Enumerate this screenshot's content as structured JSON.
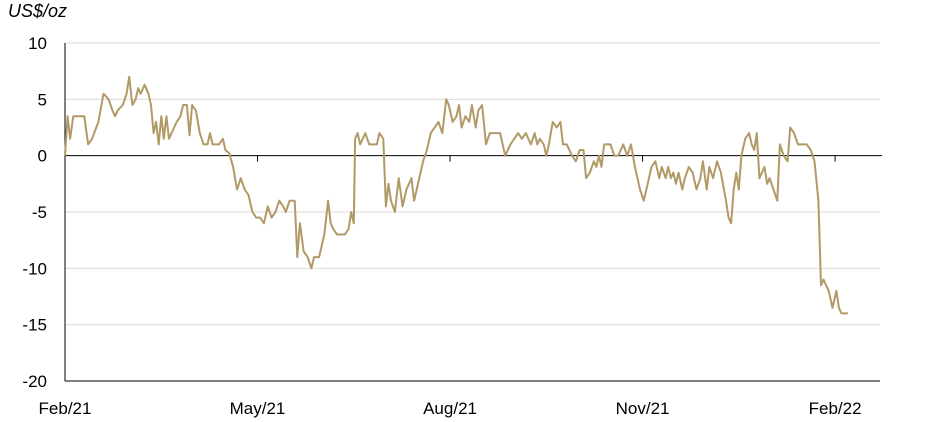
{
  "chart_data": {
    "type": "line",
    "title": "",
    "ylabel": "US$/oz",
    "xlabel": "",
    "ylim": [
      -20,
      10
    ],
    "yticks": [
      10,
      5,
      0,
      -5,
      -10,
      -15,
      -20
    ],
    "xticks": [
      {
        "label": "Feb/21",
        "x": 0
      },
      {
        "label": "May/21",
        "x": 3
      },
      {
        "label": "Aug/21",
        "x": 6
      },
      {
        "label": "Nov/21",
        "x": 9
      },
      {
        "label": "Feb/22",
        "x": 12
      }
    ],
    "xlim": [
      0,
      12.7
    ],
    "grid": true,
    "color": "#B19A66",
    "x_unit": "months since Feb/21",
    "series": [
      {
        "name": "",
        "points": [
          [
            0.0,
            0
          ],
          [
            0.04,
            3.5
          ],
          [
            0.08,
            1.5
          ],
          [
            0.13,
            3.5
          ],
          [
            0.3,
            3.5
          ],
          [
            0.36,
            1.0
          ],
          [
            0.42,
            1.5
          ],
          [
            0.52,
            3.0
          ],
          [
            0.6,
            5.5
          ],
          [
            0.68,
            5.0
          ],
          [
            0.74,
            4.0
          ],
          [
            0.78,
            3.5
          ],
          [
            0.82,
            4.0
          ],
          [
            0.9,
            4.5
          ],
          [
            0.96,
            5.5
          ],
          [
            1.0,
            7.0
          ],
          [
            1.05,
            4.5
          ],
          [
            1.1,
            5.0
          ],
          [
            1.14,
            6.0
          ],
          [
            1.18,
            5.5
          ],
          [
            1.24,
            6.3
          ],
          [
            1.3,
            5.5
          ],
          [
            1.34,
            4.5
          ],
          [
            1.38,
            2.0
          ],
          [
            1.42,
            3.0
          ],
          [
            1.46,
            1.0
          ],
          [
            1.5,
            3.5
          ],
          [
            1.54,
            1.5
          ],
          [
            1.58,
            3.5
          ],
          [
            1.62,
            1.5
          ],
          [
            1.7,
            2.5
          ],
          [
            1.74,
            3.0
          ],
          [
            1.8,
            3.5
          ],
          [
            1.84,
            4.5
          ],
          [
            1.9,
            4.5
          ],
          [
            1.94,
            1.8
          ],
          [
            1.98,
            4.5
          ],
          [
            2.04,
            4.0
          ],
          [
            2.1,
            2.0
          ],
          [
            2.16,
            1.0
          ],
          [
            2.22,
            1.0
          ],
          [
            2.26,
            2.0
          ],
          [
            2.3,
            1.0
          ],
          [
            2.4,
            1.0
          ],
          [
            2.46,
            1.5
          ],
          [
            2.5,
            0.5
          ],
          [
            2.56,
            0.2
          ],
          [
            2.62,
            -1.0
          ],
          [
            2.68,
            -3.0
          ],
          [
            2.74,
            -2.0
          ],
          [
            2.8,
            -3.0
          ],
          [
            2.86,
            -3.5
          ],
          [
            2.92,
            -5.0
          ],
          [
            2.98,
            -5.5
          ],
          [
            3.04,
            -5.5
          ],
          [
            3.1,
            -6.0
          ],
          [
            3.16,
            -4.5
          ],
          [
            3.22,
            -5.5
          ],
          [
            3.28,
            -5.0
          ],
          [
            3.34,
            -4.0
          ],
          [
            3.4,
            -4.5
          ],
          [
            3.44,
            -5.0
          ],
          [
            3.5,
            -4.0
          ],
          [
            3.58,
            -4.0
          ],
          [
            3.62,
            -9.0
          ],
          [
            3.66,
            -6.0
          ],
          [
            3.72,
            -8.5
          ],
          [
            3.78,
            -9.0
          ],
          [
            3.84,
            -10.0
          ],
          [
            3.88,
            -9.0
          ],
          [
            3.96,
            -9.0
          ],
          [
            4.04,
            -7.0
          ],
          [
            4.1,
            -4.0
          ],
          [
            4.14,
            -6.0
          ],
          [
            4.18,
            -6.5
          ],
          [
            4.24,
            -7.0
          ],
          [
            4.36,
            -7.0
          ],
          [
            4.42,
            -6.5
          ],
          [
            4.46,
            -5.0
          ],
          [
            4.5,
            -6.0
          ],
          [
            4.52,
            1.5
          ],
          [
            4.56,
            2.0
          ],
          [
            4.6,
            1.0
          ],
          [
            4.68,
            2.0
          ],
          [
            4.74,
            1.0
          ],
          [
            4.8,
            1.0
          ],
          [
            4.86,
            1.0
          ],
          [
            4.9,
            2.0
          ],
          [
            4.96,
            1.5
          ],
          [
            5.0,
            -4.5
          ],
          [
            5.04,
            -2.5
          ],
          [
            5.08,
            -4.0
          ],
          [
            5.14,
            -5.0
          ],
          [
            5.2,
            -2.0
          ],
          [
            5.26,
            -4.5
          ],
          [
            5.32,
            -3.0
          ],
          [
            5.4,
            -2.0
          ],
          [
            5.44,
            -4.0
          ],
          [
            5.48,
            -3.0
          ],
          [
            5.54,
            -1.5
          ],
          [
            5.58,
            -0.5
          ],
          [
            5.64,
            0.5
          ],
          [
            5.7,
            2.0
          ],
          [
            5.76,
            2.5
          ],
          [
            5.82,
            3.0
          ],
          [
            5.88,
            2.0
          ],
          [
            5.94,
            5.0
          ],
          [
            5.98,
            4.5
          ],
          [
            6.04,
            3.0
          ],
          [
            6.1,
            3.5
          ],
          [
            6.14,
            4.5
          ],
          [
            6.18,
            2.5
          ],
          [
            6.24,
            3.5
          ],
          [
            6.3,
            3.0
          ],
          [
            6.34,
            4.5
          ],
          [
            6.4,
            2.5
          ],
          [
            6.44,
            4.0
          ],
          [
            6.5,
            4.5
          ],
          [
            6.56,
            1.0
          ],
          [
            6.62,
            2.0
          ],
          [
            6.7,
            2.0
          ],
          [
            6.78,
            2.0
          ],
          [
            6.86,
            0.0
          ],
          [
            6.94,
            1.0
          ],
          [
            7.0,
            1.5
          ],
          [
            7.06,
            2.0
          ],
          [
            7.12,
            1.5
          ],
          [
            7.18,
            2.0
          ],
          [
            7.26,
            1.0
          ],
          [
            7.32,
            2.0
          ],
          [
            7.36,
            1.0
          ],
          [
            7.4,
            1.5
          ],
          [
            7.46,
            1.0
          ],
          [
            7.5,
            0.0
          ],
          [
            7.54,
            1.0
          ],
          [
            7.6,
            3.0
          ],
          [
            7.66,
            2.5
          ],
          [
            7.72,
            3.0
          ],
          [
            7.76,
            1.0
          ],
          [
            7.82,
            1.0
          ],
          [
            7.9,
            0.0
          ],
          [
            7.96,
            -0.5
          ],
          [
            8.02,
            0.5
          ],
          [
            8.08,
            0.5
          ],
          [
            8.12,
            -2.0
          ],
          [
            8.18,
            -1.5
          ],
          [
            8.24,
            -0.5
          ],
          [
            8.28,
            -1.0
          ],
          [
            8.32,
            0.0
          ],
          [
            8.36,
            -1.0
          ],
          [
            8.4,
            1.0
          ],
          [
            8.44,
            1.0
          ],
          [
            8.5,
            1.0
          ],
          [
            8.56,
            0.0
          ],
          [
            8.62,
            0.0
          ],
          [
            8.7,
            1.0
          ],
          [
            8.76,
            0.0
          ],
          [
            8.82,
            1.0
          ],
          [
            8.88,
            -1.0
          ],
          [
            8.96,
            -3.0
          ],
          [
            9.02,
            -4.0
          ],
          [
            9.08,
            -2.5
          ],
          [
            9.14,
            -1.0
          ],
          [
            9.2,
            -0.5
          ],
          [
            9.26,
            -2.0
          ],
          [
            9.3,
            -1.0
          ],
          [
            9.36,
            -2.0
          ],
          [
            9.4,
            -1.0
          ],
          [
            9.44,
            -2.0
          ],
          [
            9.48,
            -1.5
          ],
          [
            9.52,
            -2.5
          ],
          [
            9.56,
            -1.5
          ],
          [
            9.62,
            -3.0
          ],
          [
            9.66,
            -2.0
          ],
          [
            9.72,
            -1.0
          ],
          [
            9.78,
            -1.5
          ],
          [
            9.84,
            -3.0
          ],
          [
            9.9,
            -2.0
          ],
          [
            9.94,
            -0.5
          ],
          [
            10.0,
            -3.0
          ],
          [
            10.04,
            -1.0
          ],
          [
            10.1,
            -2.0
          ],
          [
            10.16,
            -0.5
          ],
          [
            10.22,
            -1.5
          ],
          [
            10.3,
            -4.0
          ],
          [
            10.34,
            -5.5
          ],
          [
            10.38,
            -6.0
          ],
          [
            10.42,
            -3.0
          ],
          [
            10.46,
            -1.5
          ],
          [
            10.5,
            -3.0
          ],
          [
            10.54,
            0.0
          ],
          [
            10.6,
            1.5
          ],
          [
            10.66,
            2.0
          ],
          [
            10.7,
            1.0
          ],
          [
            10.74,
            0.5
          ],
          [
            10.78,
            2.0
          ],
          [
            10.82,
            -2.0
          ],
          [
            10.86,
            -1.5
          ],
          [
            10.9,
            -1.0
          ],
          [
            10.94,
            -2.5
          ],
          [
            10.98,
            -2.0
          ],
          [
            11.04,
            -3.0
          ],
          [
            11.1,
            -4.0
          ],
          [
            11.14,
            1.0
          ],
          [
            11.2,
            0.0
          ],
          [
            11.26,
            -0.5
          ],
          [
            11.3,
            2.5
          ],
          [
            11.36,
            2.0
          ],
          [
            11.42,
            1.0
          ],
          [
            11.5,
            1.0
          ],
          [
            11.56,
            1.0
          ],
          [
            11.62,
            0.5
          ],
          [
            11.68,
            -0.5
          ],
          [
            11.74,
            -4.0
          ],
          [
            11.78,
            -11.5
          ],
          [
            11.82,
            -11.0
          ],
          [
            11.9,
            -12.0
          ],
          [
            11.96,
            -13.5
          ],
          [
            12.02,
            -12.0
          ],
          [
            12.06,
            -13.5
          ],
          [
            12.1,
            -14.0
          ],
          [
            12.2,
            -14.0
          ]
        ]
      }
    ]
  }
}
